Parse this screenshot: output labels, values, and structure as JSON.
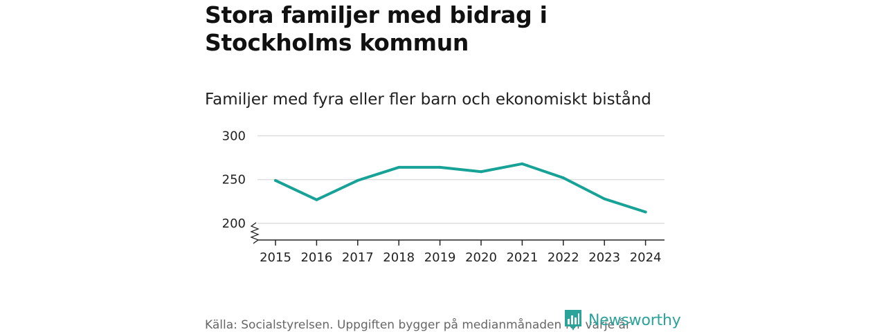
{
  "headline": "Stora familjer med bidrag i Stockholms kommun",
  "source": "Källa: Socialstyrelsen. Uppgiften bygger på medianmånaden för varje år",
  "logo": {
    "text": "Newsworthy",
    "icon": "newsworthy-logo-icon"
  },
  "colors": {
    "line": "#17a298",
    "grid": "#dddddd",
    "axis": "#222222",
    "brand": "#2aa39a"
  },
  "chart_data": {
    "type": "line",
    "title": "Familjer med fyra eller fler barn och ekonomiskt bistånd",
    "xlabel": "",
    "ylabel": "",
    "categories": [
      "2015",
      "2016",
      "2017",
      "2018",
      "2019",
      "2020",
      "2021",
      "2022",
      "2023",
      "2024"
    ],
    "series": [
      {
        "values": [
          249,
          227,
          249,
          264,
          264,
          259,
          268,
          252,
          228,
          213
        ]
      }
    ],
    "yticks": [
      "200",
      "250",
      "300"
    ],
    "ylim": [
      181,
      305
    ],
    "axis_break": true,
    "grid": true,
    "legend": "none"
  }
}
